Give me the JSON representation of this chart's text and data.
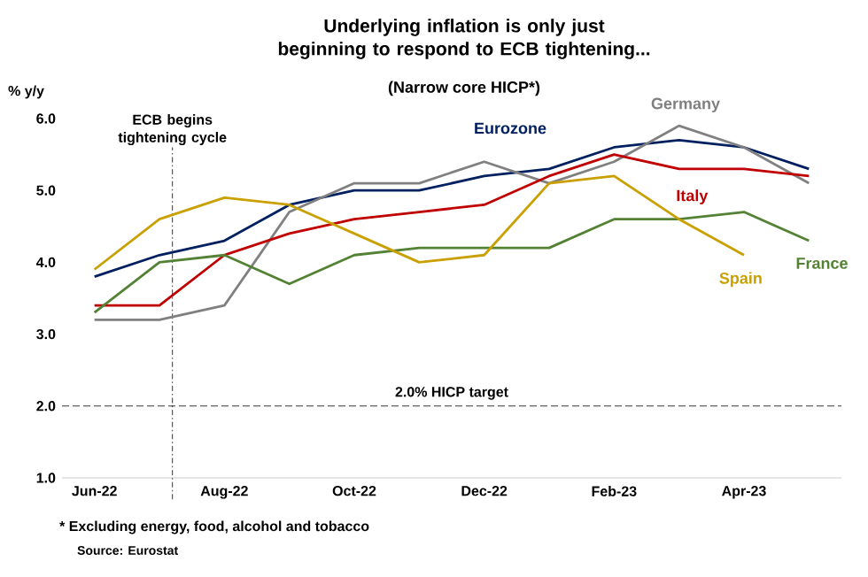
{
  "chart_data": {
    "type": "line",
    "title": "Underlying inflation is only just beginning to respond to ECB tightening...",
    "subtitle": "(Narrow core HICP*)",
    "ylabel": "% y/y",
    "categories": [
      "Jun-22",
      null,
      "Aug-22",
      null,
      "Oct-22",
      null,
      "Dec-22",
      null,
      "Feb-23",
      null,
      "Apr-23",
      null
    ],
    "series": [
      {
        "name": "Eurozone",
        "color": "#002060",
        "values": [
          3.8,
          4.1,
          4.3,
          4.8,
          5.0,
          5.0,
          5.2,
          5.3,
          5.6,
          5.7,
          5.6,
          5.3
        ]
      },
      {
        "name": "Germany",
        "color": "#808080",
        "values": [
          3.2,
          3.2,
          3.4,
          4.7,
          5.1,
          5.1,
          5.4,
          5.1,
          5.4,
          5.9,
          5.6,
          5.1
        ]
      },
      {
        "name": "Italy",
        "color": "#c00000",
        "values": [
          3.4,
          3.4,
          4.1,
          4.4,
          4.6,
          4.7,
          4.8,
          5.2,
          5.5,
          5.3,
          5.3,
          5.2
        ]
      },
      {
        "name": "France",
        "color": "#548235",
        "values": [
          3.3,
          4.0,
          4.1,
          3.7,
          4.1,
          4.2,
          4.2,
          4.2,
          4.6,
          4.6,
          4.7,
          4.3
        ]
      },
      {
        "name": "Spain",
        "color": "#c9a000",
        "values": [
          3.9,
          4.6,
          4.9,
          4.8,
          4.4,
          4.0,
          4.1,
          5.1,
          5.2,
          4.6,
          4.1,
          null
        ]
      }
    ],
    "ylim": [
      1,
      6
    ],
    "yticks": [
      {
        "value": 1,
        "label": "1.0"
      },
      {
        "value": 2,
        "label": "2.0"
      },
      {
        "value": 3,
        "label": "3.0"
      },
      {
        "value": 4,
        "label": "4.0"
      },
      {
        "value": 5,
        "label": "5.0"
      },
      {
        "value": 6,
        "label": "6.0"
      }
    ],
    "ref_lines": [
      {
        "axis": "y",
        "value": 2,
        "label": "2.0% HICP target",
        "color": "#000000",
        "line_style": "dashed"
      }
    ],
    "annotations": [
      "ECB begins tightening cycle",
      "* Excluding energy, food, alcohol and tobacco",
      "Source: Eurostat"
    ],
    "grid": false,
    "marker": "none",
    "line_style": "solid"
  }
}
